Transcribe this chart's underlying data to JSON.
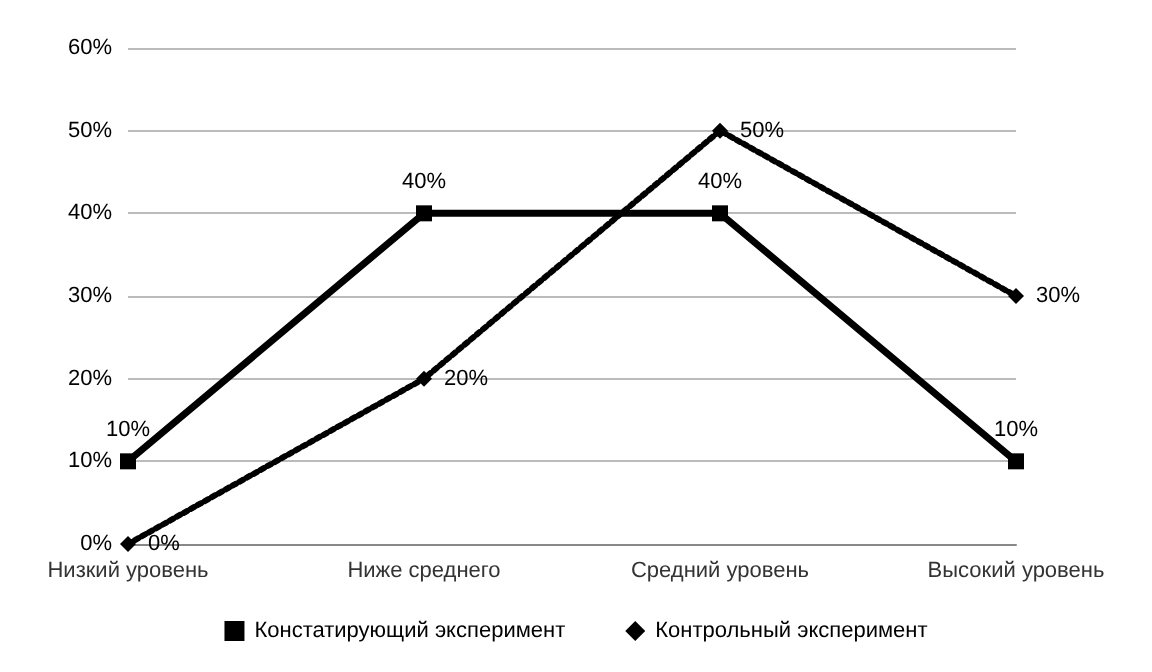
{
  "chart_data": {
    "type": "line",
    "categories": [
      "Низкий уровень",
      "Ниже среднего",
      "Средний уровень",
      "Высокий уровень"
    ],
    "series": [
      {
        "name": "Констатирующий эксперимент",
        "color": "#000000",
        "values": [
          10,
          40,
          40,
          10
        ],
        "value_labels": [
          "10%",
          "40%",
          "40%",
          "10%"
        ],
        "marker": "square",
        "line_style": "solid"
      },
      {
        "name": "Контрольный эксперимент",
        "color": "#000000",
        "values": [
          0,
          20,
          50,
          30
        ],
        "value_labels": [
          "0%",
          "20%",
          "50%",
          "30%"
        ],
        "marker": "diamond",
        "line_style": "dotted"
      }
    ],
    "ylim": [
      0,
      60
    ],
    "yticks": [
      {
        "value": 0,
        "label": "0%"
      },
      {
        "value": 10,
        "label": "10%"
      },
      {
        "value": 20,
        "label": "20%"
      },
      {
        "value": 30,
        "label": "30%"
      },
      {
        "value": 40,
        "label": "40%"
      },
      {
        "value": 50,
        "label": "50%"
      },
      {
        "value": 60,
        "label": "60%"
      }
    ],
    "grid": "y",
    "legend": "bottom"
  }
}
